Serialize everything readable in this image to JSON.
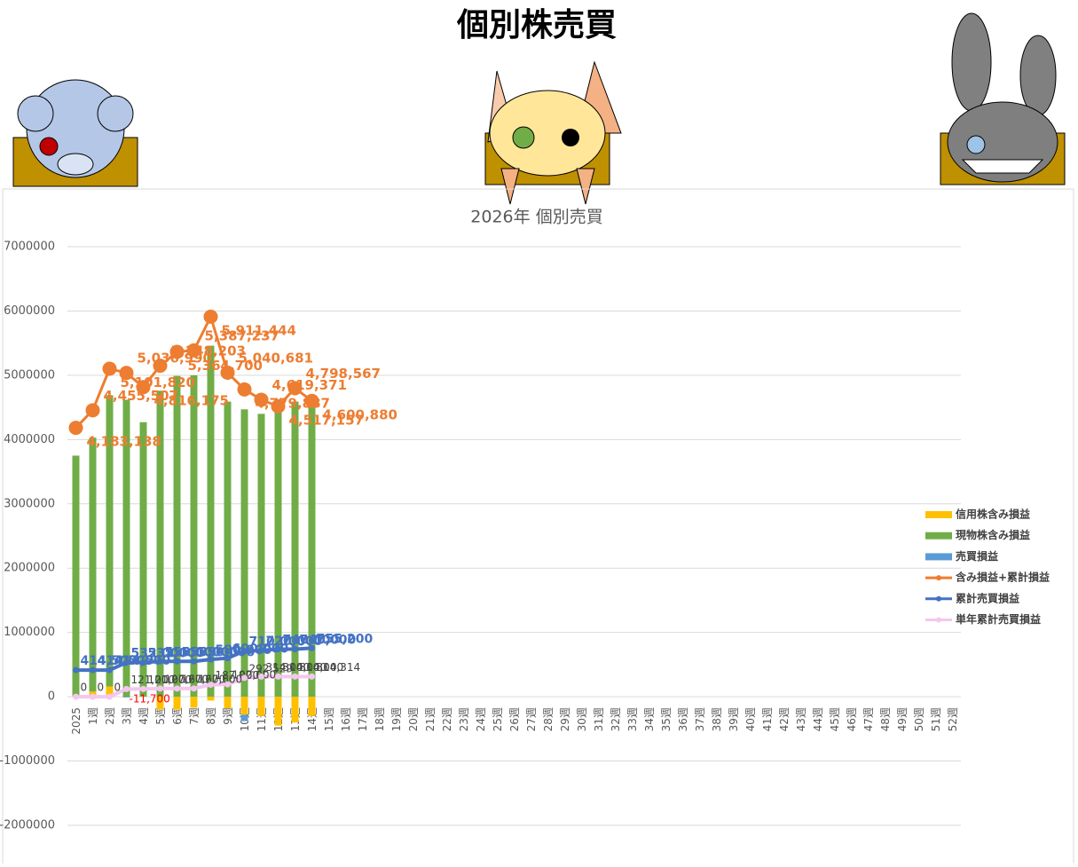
{
  "header": {
    "title": "個別株売買"
  },
  "chart_data": {
    "type": "bar",
    "title": "2026年 個別売買",
    "categories": [
      "2025",
      "1週",
      "2週",
      "3週",
      "4週",
      "5週",
      "6週",
      "7週",
      "8週",
      "9週",
      "10週",
      "11週",
      "12週",
      "13週",
      "14週",
      "15週",
      "16週",
      "17週",
      "18週",
      "19週",
      "20週",
      "21週",
      "22週",
      "23週",
      "24週",
      "25週",
      "26週",
      "27週",
      "28週",
      "29週",
      "30週",
      "31週",
      "32週",
      "33週",
      "34週",
      "35週",
      "36週",
      "37週",
      "38週",
      "39週",
      "40週",
      "41週",
      "42週",
      "43週",
      "44週",
      "45週",
      "46週",
      "47週",
      "48週",
      "49週",
      "50週",
      "51週",
      "52週"
    ],
    "ylim": [
      -2000000,
      7000000
    ],
    "yticks": [
      -2000000,
      -1000000,
      0,
      1000000,
      2000000,
      3000000,
      4000000,
      5000000,
      6000000,
      7000000
    ],
    "grid": true,
    "legend": "right",
    "stacked": true,
    "series": [
      {
        "name": "信用株含み損益",
        "type": "bar",
        "color": "#ffc000",
        "values": [
          10000,
          80000,
          160000,
          0,
          0,
          -200000,
          -200000,
          -170000,
          -60000,
          -180000,
          -280000,
          -300000,
          -450000,
          -400000,
          -300000,
          null,
          null,
          null,
          null,
          null,
          null,
          null,
          null,
          null,
          null,
          null,
          null,
          null,
          null,
          null,
          null,
          null,
          null,
          null,
          null,
          null,
          null,
          null,
          null,
          null,
          null,
          null,
          null,
          null,
          null,
          null,
          null,
          null,
          null,
          null,
          null,
          null,
          null
        ]
      },
      {
        "name": "現物株含み損益",
        "type": "bar",
        "color": "#70ad47",
        "values": [
          3740000,
          3950000,
          4530000,
          4620000,
          4270000,
          4760000,
          4990000,
          5000000,
          5460000,
          4590000,
          4470000,
          4400000,
          4520000,
          4590000,
          4510000,
          null,
          null,
          null,
          null,
          null,
          null,
          null,
          null,
          null,
          null,
          null,
          null,
          null,
          null,
          null,
          null,
          null,
          null,
          null,
          null,
          null,
          null,
          null,
          null,
          null,
          null,
          null,
          null,
          null,
          null,
          null,
          null,
          null,
          null,
          null,
          null,
          null,
          null
        ]
      },
      {
        "name": "売買損益",
        "type": "bar",
        "color": "#5b9bd5",
        "values": [
          0,
          0,
          0,
          -11700,
          0,
          0,
          0,
          0,
          0,
          0,
          -100000,
          0,
          0,
          0,
          0,
          null,
          null,
          null,
          null,
          null,
          null,
          null,
          null,
          null,
          null,
          null,
          null,
          null,
          null,
          null,
          null,
          null,
          null,
          null,
          null,
          null,
          null,
          null,
          null,
          null,
          null,
          null,
          null,
          null,
          null,
          null,
          null,
          null,
          null,
          null,
          null,
          null,
          null
        ],
        "value_labels": [
          null,
          null,
          null,
          "-11,700",
          null,
          null,
          null,
          null,
          null,
          null,
          null,
          null,
          null,
          null,
          null,
          null,
          null,
          null,
          null,
          null,
          null,
          null,
          null,
          null,
          null,
          null,
          null,
          null,
          null,
          null,
          null,
          null,
          null,
          null,
          null,
          null,
          null,
          null,
          null,
          null,
          null,
          null,
          null,
          null,
          null,
          null,
          null,
          null,
          null,
          null,
          null,
          null,
          null
        ]
      },
      {
        "name": "含み損益+累計損益",
        "type": "line",
        "color": "#ed7d31",
        "values": [
          4183138,
          4455507,
          5101820,
          5036990,
          4816175,
          5148203,
          5364700,
          5387237,
          5911444,
          5040681,
          4779887,
          4619371,
          4517157,
          4798567,
          4600880,
          null,
          null,
          null,
          null,
          null,
          null,
          null,
          null,
          null,
          null,
          null,
          null,
          null,
          null,
          null,
          null,
          null,
          null,
          null,
          null,
          null,
          null,
          null,
          null,
          null,
          null,
          null,
          null,
          null,
          null,
          null,
          null,
          null,
          null,
          null,
          null,
          null,
          null
        ],
        "value_labels": [
          "4,183,138",
          "4,455,507",
          "5,101,820",
          "5,036,990",
          "4,816,175",
          "5,148,203",
          "5,364,700",
          "5,387,237",
          "5,911,444",
          "5,040,681",
          "4,779,887",
          "4,619,371",
          "4,517,157",
          "4,798,567",
          "4,600,880",
          null,
          null,
          null,
          null,
          null,
          null,
          null,
          null,
          null,
          null,
          null,
          null,
          null,
          null,
          null,
          null,
          null,
          null,
          null,
          null,
          null,
          null,
          null,
          null,
          null,
          null,
          null,
          null,
          null,
          null,
          null,
          null,
          null,
          null,
          null,
          null,
          null,
          null
        ]
      },
      {
        "name": "累計売買損益",
        "type": "line",
        "color": "#4472c4",
        "values": [
          414500,
          414500,
          414500,
          532000,
          532000,
          550000,
          550000,
          550000,
          580000,
          600000,
          710000,
          720000,
          740000,
          740000,
          755200,
          null,
          null,
          null,
          null,
          null,
          null,
          null,
          null,
          null,
          null,
          null,
          null,
          null,
          null,
          null,
          null,
          null,
          null,
          null,
          null,
          null,
          null,
          null,
          null,
          null,
          null,
          null,
          null,
          null,
          null,
          null,
          null,
          null,
          null,
          null,
          null,
          null,
          null
        ],
        "value_labels": [
          "414,500",
          "414,500",
          "414,500",
          "532,000",
          "532,000",
          "550,000",
          "550,000",
          "550,000",
          "580,000",
          "600,000",
          "710,000",
          "720,000",
          "740,000",
          "740,000",
          "755,200",
          null,
          null,
          null,
          null,
          null,
          null,
          null,
          null,
          null,
          null,
          null,
          null,
          null,
          null,
          null,
          null,
          null,
          null,
          null,
          null,
          null,
          null,
          null,
          null,
          null,
          null,
          null,
          null,
          null,
          null,
          null,
          null,
          null,
          null,
          null,
          null,
          null,
          null
        ]
      },
      {
        "name": "単年累計売買損益",
        "type": "line",
        "color": "#f4c6f0",
        "values": [
          0,
          0,
          0,
          121000,
          121000,
          127600,
          127600,
          127600,
          187000,
          192000,
          292529,
          314000,
          314000,
          314000,
          314314,
          null,
          null,
          null,
          null,
          null,
          null,
          null,
          null,
          null,
          null,
          null,
          null,
          null,
          null,
          null,
          null,
          null,
          null,
          null,
          null,
          null,
          null,
          null,
          null,
          null,
          null,
          null,
          null,
          null,
          null,
          null,
          null,
          null,
          null,
          null,
          null,
          null,
          null
        ],
        "value_labels": [
          "0",
          "0",
          "0",
          "121,000",
          "121,000",
          "127,600",
          "127,600",
          "127,600",
          "187,000",
          "192,000",
          "292,529",
          "314,000",
          "314,000",
          "314,000",
          "314,314",
          null,
          null,
          null,
          null,
          null,
          null,
          null,
          null,
          null,
          null,
          null,
          null,
          null,
          null,
          null,
          null,
          null,
          null,
          null,
          null,
          null,
          null,
          null,
          null,
          null,
          null,
          null,
          null,
          null,
          null,
          null,
          null,
          null,
          null,
          null,
          null,
          null,
          null
        ]
      }
    ]
  }
}
